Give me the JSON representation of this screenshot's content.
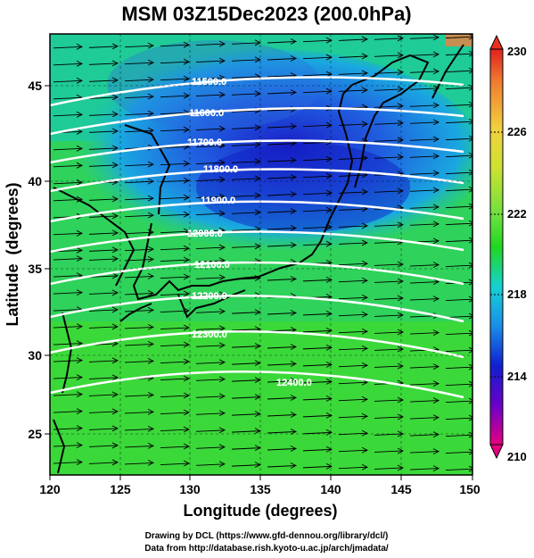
{
  "title": "MSM 03Z15Dec2023 (200.0hPa)",
  "axes": {
    "xlabel": "Longitude (degrees)",
    "ylabel": "Latitude  (degrees)",
    "xticks": [
      "120",
      "125",
      "130",
      "135",
      "140",
      "145",
      "150"
    ],
    "yticks": [
      "45",
      "40",
      "35",
      "30",
      "25"
    ]
  },
  "colorbar": {
    "ticks": [
      "230",
      "226",
      "222",
      "218",
      "214",
      "210"
    ],
    "colors": [
      "#e6007e",
      "#6a00c8",
      "#1020d0",
      "#1a8ee8",
      "#15d2d2",
      "#18c870",
      "#20d820",
      "#6ee040",
      "#cde230",
      "#f2d040",
      "#f07a30",
      "#e02020"
    ]
  },
  "contours": [
    {
      "label": "11500.0"
    },
    {
      "label": "11600.0"
    },
    {
      "label": "11700.0"
    },
    {
      "label": "11800.0"
    },
    {
      "label": "11900.0"
    },
    {
      "label": "12000.0"
    },
    {
      "label": "12100.0"
    },
    {
      "label": "12200.0"
    },
    {
      "label": "12300.0"
    },
    {
      "label": "12400.0"
    }
  ],
  "credits": {
    "line1": "Drawing by DCL (https://www.gfd-dennou.org/library/dcl/)",
    "line2": "Data from http://database.rish.kyoto-u.ac.jp/arch/jmadata/"
  }
}
